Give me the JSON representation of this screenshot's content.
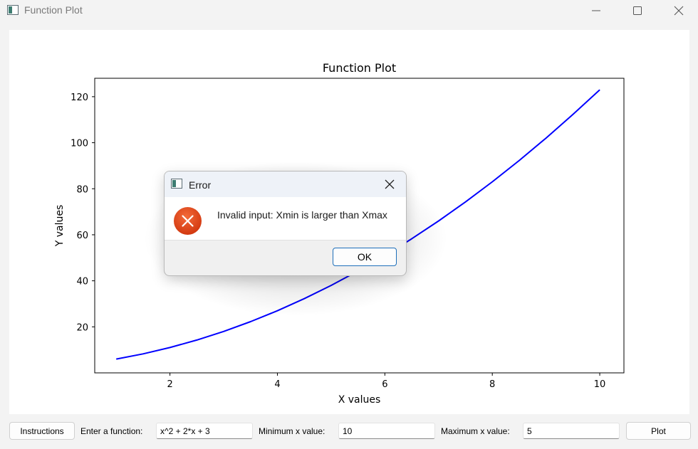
{
  "window": {
    "title": "Function Plot",
    "controls": {
      "minimize": "minimize-icon",
      "maximize": "maximize-icon",
      "close": "close-icon"
    }
  },
  "chart_data": {
    "type": "line",
    "title": "Function Plot",
    "xlabel": "X values",
    "ylabel": "Y values",
    "xlim": [
      0.6,
      10.45
    ],
    "ylim": [
      0,
      128
    ],
    "xticks": [
      2,
      4,
      6,
      8,
      10
    ],
    "yticks": [
      20,
      40,
      60,
      80,
      100,
      120
    ],
    "grid": false,
    "series": [
      {
        "color": "#0000ff",
        "x": [
          1,
          1.5,
          2,
          2.5,
          3,
          3.5,
          4,
          4.5,
          5,
          5.5,
          6,
          6.5,
          7,
          7.5,
          8,
          8.5,
          9,
          9.5,
          10
        ],
        "y": [
          6,
          8.25,
          11,
          14.25,
          18,
          22.25,
          27,
          32.25,
          38,
          44.25,
          51,
          58.25,
          66,
          74.25,
          83,
          92.25,
          102,
          112.25,
          123
        ]
      }
    ]
  },
  "toolbar": {
    "instructions_label": "Instructions",
    "function_label": "Enter a function:",
    "function_value": "x^2 + 2*x + 3",
    "xmin_label": "Minimum x value:",
    "xmin_value": "10",
    "xmax_label": "Maximum x value:",
    "xmax_value": "5",
    "plot_label": "Plot"
  },
  "dialog": {
    "title": "Error",
    "message": "Invalid input: Xmin is larger than Xmax",
    "ok_label": "OK",
    "icon": "error-icon",
    "colors": {
      "error_icon": "#e0461c",
      "ok_border": "#1e6fba"
    }
  }
}
